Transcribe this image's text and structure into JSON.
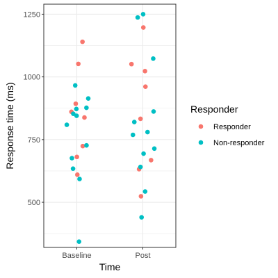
{
  "chart_data": {
    "type": "scatter",
    "xlabel": "Time",
    "ylabel": "Response time (ms)",
    "categories": [
      "Baseline",
      "Post"
    ],
    "ylim": [
      320,
      1290
    ],
    "yticks": [
      500,
      750,
      1000,
      1250
    ],
    "grid": true,
    "legend": {
      "title": "Responder",
      "placement": "right"
    },
    "series": [
      {
        "name": "Responder",
        "color": "#F8766D",
        "points": [
          {
            "x": "Baseline",
            "y": 1140
          },
          {
            "x": "Baseline",
            "y": 1052
          },
          {
            "x": "Baseline",
            "y": 893
          },
          {
            "x": "Baseline",
            "y": 861
          },
          {
            "x": "Baseline",
            "y": 838
          },
          {
            "x": "Baseline",
            "y": 724
          },
          {
            "x": "Baseline",
            "y": 681
          },
          {
            "x": "Baseline",
            "y": 610
          },
          {
            "x": "Post",
            "y": 1197
          },
          {
            "x": "Post",
            "y": 1051
          },
          {
            "x": "Post",
            "y": 1023
          },
          {
            "x": "Post",
            "y": 961
          },
          {
            "x": "Post",
            "y": 833
          },
          {
            "x": "Post",
            "y": 668
          },
          {
            "x": "Post",
            "y": 632
          },
          {
            "x": "Post",
            "y": 524
          }
        ]
      },
      {
        "name": "Non-responder",
        "color": "#00BFC4",
        "points": [
          {
            "x": "Baseline",
            "y": 966
          },
          {
            "x": "Baseline",
            "y": 914
          },
          {
            "x": "Baseline",
            "y": 877
          },
          {
            "x": "Baseline",
            "y": 872
          },
          {
            "x": "Baseline",
            "y": 853
          },
          {
            "x": "Baseline",
            "y": 845
          },
          {
            "x": "Baseline",
            "y": 809
          },
          {
            "x": "Baseline",
            "y": 727
          },
          {
            "x": "Baseline",
            "y": 676
          },
          {
            "x": "Baseline",
            "y": 634
          },
          {
            "x": "Baseline",
            "y": 593
          },
          {
            "x": "Baseline",
            "y": 343
          },
          {
            "x": "Post",
            "y": 1250
          },
          {
            "x": "Post",
            "y": 1237
          },
          {
            "x": "Post",
            "y": 1073
          },
          {
            "x": "Post",
            "y": 862
          },
          {
            "x": "Post",
            "y": 820
          },
          {
            "x": "Post",
            "y": 780
          },
          {
            "x": "Post",
            "y": 769
          },
          {
            "x": "Post",
            "y": 714
          },
          {
            "x": "Post",
            "y": 694
          },
          {
            "x": "Post",
            "y": 641
          },
          {
            "x": "Post",
            "y": 543
          },
          {
            "x": "Post",
            "y": 440
          }
        ]
      }
    ]
  }
}
